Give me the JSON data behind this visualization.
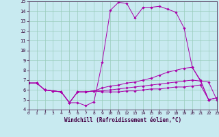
{
  "xlabel": "Windchill (Refroidissement éolien,°C)",
  "xlim": [
    0,
    23
  ],
  "ylim": [
    4,
    15
  ],
  "yticks": [
    4,
    5,
    6,
    7,
    8,
    9,
    10,
    11,
    12,
    13,
    14,
    15
  ],
  "xticks": [
    0,
    1,
    2,
    3,
    4,
    5,
    6,
    7,
    8,
    9,
    10,
    11,
    12,
    13,
    14,
    15,
    16,
    17,
    18,
    19,
    20,
    21,
    22,
    23
  ],
  "background_color": "#c8eaf0",
  "grid_color": "#99ccbb",
  "line_color": "#aa00aa",
  "series": [
    [
      6.7,
      6.7,
      6.0,
      5.9,
      5.8,
      4.7,
      4.7,
      4.4,
      4.8,
      8.8,
      14.1,
      14.9,
      14.8,
      13.3,
      14.4,
      14.4,
      14.5,
      14.2,
      13.9,
      12.3,
      8.3,
      6.9,
      6.8,
      5.0
    ],
    [
      6.7,
      6.7,
      6.0,
      5.9,
      5.8,
      4.7,
      5.8,
      5.8,
      5.9,
      6.2,
      6.4,
      6.5,
      6.7,
      6.8,
      7.0,
      7.2,
      7.5,
      7.8,
      8.0,
      8.2,
      8.3,
      7.0,
      5.0,
      5.2
    ],
    [
      6.7,
      6.7,
      6.0,
      5.9,
      5.8,
      4.7,
      5.8,
      5.8,
      5.9,
      5.9,
      6.0,
      6.1,
      6.2,
      6.3,
      6.4,
      6.5,
      6.6,
      6.7,
      6.8,
      6.9,
      7.0,
      6.9,
      5.0,
      5.2
    ],
    [
      6.7,
      6.7,
      6.0,
      5.9,
      5.8,
      4.7,
      5.8,
      5.8,
      5.9,
      5.8,
      5.8,
      5.8,
      5.9,
      5.9,
      6.0,
      6.1,
      6.1,
      6.2,
      6.3,
      6.3,
      6.4,
      6.5,
      5.0,
      5.2
    ]
  ]
}
